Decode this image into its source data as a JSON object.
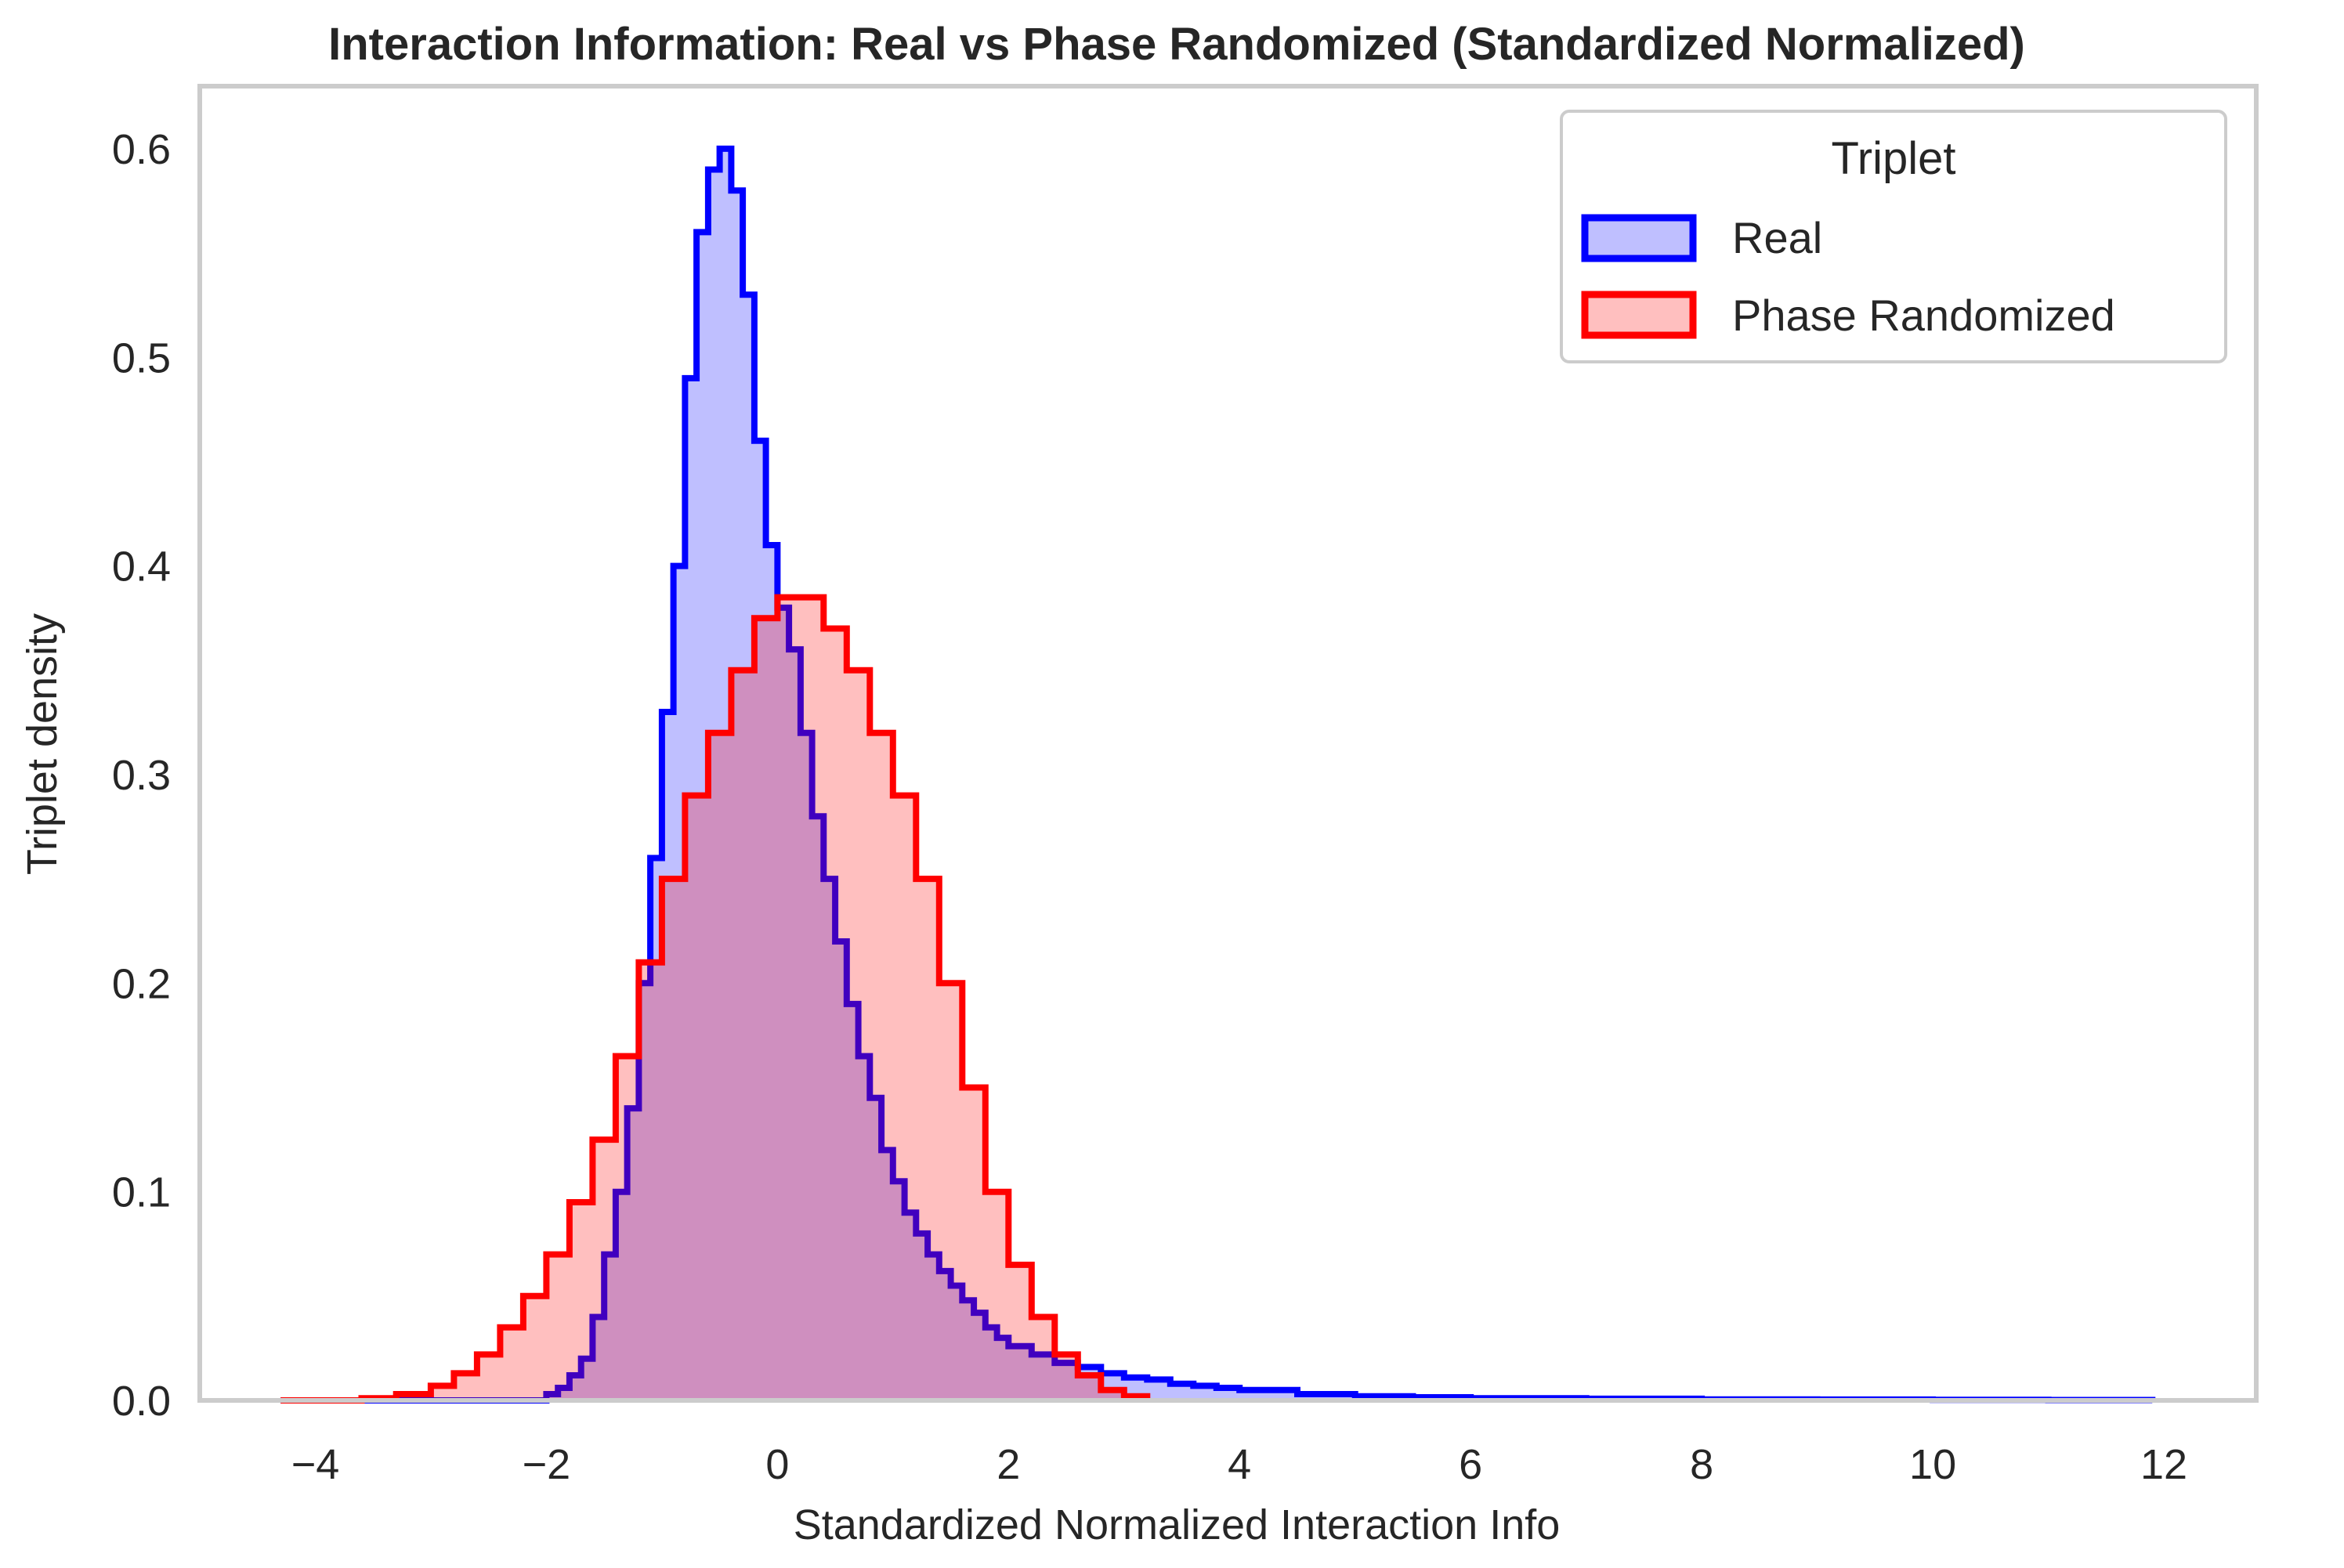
{
  "chart_data": {
    "type": "area",
    "title": "Interaction Information: Real vs Phase Randomized (Standardized Normalized)",
    "xlabel": "Standardized Normalized Interaction Info",
    "ylabel": "Triplet density",
    "xlim": [
      -5,
      12.8
    ],
    "ylim": [
      0,
      0.63
    ],
    "grid": false,
    "xticks": [
      -4,
      -2,
      0,
      2,
      4,
      6,
      8,
      10,
      12
    ],
    "xtick_labels": [
      "−4",
      "−2",
      "0",
      "2",
      "4",
      "6",
      "8",
      "10",
      "12"
    ],
    "yticks": [
      0.0,
      0.1,
      0.2,
      0.3,
      0.4,
      0.5,
      0.6
    ],
    "ytick_labels": [
      "0.0",
      "0.1",
      "0.2",
      "0.3",
      "0.4",
      "0.5",
      "0.6"
    ],
    "legend": {
      "title": "Triplet",
      "placement": "top-right"
    },
    "series": [
      {
        "name": "Real",
        "color": "#0000ff",
        "fill": "#0000ff",
        "fill_opacity": 0.25,
        "x": [
          -4.3,
          -2.2,
          -2.0,
          -1.9,
          -1.8,
          -1.7,
          -1.6,
          -1.5,
          -1.4,
          -1.3,
          -1.2,
          -1.1,
          -1.0,
          -0.9,
          -0.8,
          -0.7,
          -0.6,
          -0.5,
          -0.4,
          -0.3,
          -0.2,
          -0.1,
          0.0,
          0.1,
          0.2,
          0.3,
          0.4,
          0.5,
          0.6,
          0.7,
          0.8,
          0.9,
          1.0,
          1.1,
          1.2,
          1.3,
          1.4,
          1.5,
          1.6,
          1.7,
          1.8,
          1.9,
          2.0,
          2.2,
          2.4,
          2.6,
          2.8,
          3.0,
          3.2,
          3.4,
          3.6,
          3.8,
          4.0,
          4.5,
          5.0,
          5.5,
          6.0,
          7.0,
          8.0,
          9.0,
          10.0,
          11.0,
          11.9
        ],
        "values": [
          0.0,
          0.0,
          0.003,
          0.006,
          0.012,
          0.02,
          0.04,
          0.07,
          0.1,
          0.14,
          0.2,
          0.26,
          0.33,
          0.4,
          0.49,
          0.56,
          0.59,
          0.6,
          0.58,
          0.53,
          0.46,
          0.41,
          0.38,
          0.36,
          0.32,
          0.28,
          0.25,
          0.22,
          0.19,
          0.165,
          0.145,
          0.12,
          0.105,
          0.09,
          0.08,
          0.07,
          0.062,
          0.055,
          0.048,
          0.042,
          0.035,
          0.03,
          0.026,
          0.022,
          0.018,
          0.016,
          0.013,
          0.011,
          0.01,
          0.008,
          0.007,
          0.006,
          0.005,
          0.003,
          0.002,
          0.0015,
          0.001,
          0.0008,
          0.0005,
          0.0004,
          0.0003,
          0.0002,
          0.0
        ]
      },
      {
        "name": "Phase Randomized",
        "color": "#ff0000",
        "fill": "#ff0000",
        "fill_opacity": 0.25,
        "x": [
          -4.3,
          -3.6,
          -3.3,
          -3.0,
          -2.8,
          -2.6,
          -2.4,
          -2.2,
          -2.0,
          -1.8,
          -1.6,
          -1.4,
          -1.2,
          -1.0,
          -0.8,
          -0.6,
          -0.4,
          -0.2,
          0.0,
          0.2,
          0.4,
          0.6,
          0.8,
          1.0,
          1.2,
          1.4,
          1.6,
          1.8,
          2.0,
          2.2,
          2.4,
          2.6,
          2.8,
          3.0,
          3.2
        ],
        "values": [
          0.0,
          0.001,
          0.003,
          0.007,
          0.013,
          0.022,
          0.035,
          0.05,
          0.07,
          0.095,
          0.125,
          0.165,
          0.21,
          0.25,
          0.29,
          0.32,
          0.35,
          0.375,
          0.385,
          0.385,
          0.37,
          0.35,
          0.32,
          0.29,
          0.25,
          0.2,
          0.15,
          0.1,
          0.065,
          0.04,
          0.022,
          0.012,
          0.005,
          0.002,
          0.0
        ]
      }
    ]
  }
}
